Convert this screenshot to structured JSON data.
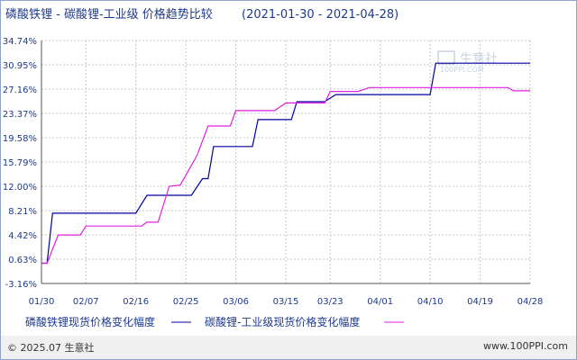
{
  "chart_data": {
    "type": "line",
    "title": "磷酸铁锂 - 碳酸锂-工业级 价格趋势比较",
    "date_range": "(2021-01-30 - 2021-04-28)",
    "x_ticks": [
      "01/30",
      "02/07",
      "02/16",
      "02/25",
      "03/06",
      "03/15",
      "03/23",
      "04/01",
      "04/10",
      "04/19",
      "04/28"
    ],
    "y_ticks": [
      "34.74%",
      "30.95%",
      "27.16%",
      "23.37%",
      "19.58%",
      "15.79%",
      "12.00%",
      "8.21%",
      "4.42%",
      "0.63%",
      "-3.16%"
    ],
    "ylim": [
      -3.16,
      34.74
    ],
    "x_range": [
      "01/30",
      "04/28"
    ],
    "grid": true,
    "legend_position": "bottom-left",
    "series": [
      {
        "name": "磷酸铁锂现货价格变化幅度",
        "color": "#0000a0",
        "points": [
          [
            "01/30",
            0.0
          ],
          [
            "01/31",
            0.0
          ],
          [
            "02/01",
            7.8
          ],
          [
            "02/16",
            7.8
          ],
          [
            "02/18",
            10.6
          ],
          [
            "02/26",
            10.6
          ],
          [
            "02/28",
            13.2
          ],
          [
            "02/29",
            13.2
          ],
          [
            "03/02",
            18.2
          ],
          [
            "03/09",
            18.2
          ],
          [
            "03/10",
            22.4
          ],
          [
            "03/16",
            22.4
          ],
          [
            "03/17",
            25.2
          ],
          [
            "03/22",
            25.2
          ],
          [
            "03/24",
            26.3
          ],
          [
            "04/10",
            26.3
          ],
          [
            "04/11",
            31.2
          ],
          [
            "04/28",
            31.2
          ]
        ]
      },
      {
        "name": "碳酸锂-工业级现货价格变化幅度",
        "color": "#e020e0",
        "points": [
          [
            "01/30",
            0.0
          ],
          [
            "01/31",
            0.0
          ],
          [
            "02/02",
            4.4
          ],
          [
            "02/06",
            4.4
          ],
          [
            "02/07",
            5.8
          ],
          [
            "02/17",
            5.8
          ],
          [
            "02/18",
            6.4
          ],
          [
            "02/20",
            6.4
          ],
          [
            "02/22",
            12.0
          ],
          [
            "02/24",
            12.2
          ],
          [
            "02/27",
            16.8
          ],
          [
            "03/01",
            21.4
          ],
          [
            "03/05",
            21.4
          ],
          [
            "03/06",
            23.8
          ],
          [
            "03/13",
            23.8
          ],
          [
            "03/15",
            25.0
          ],
          [
            "03/22",
            25.0
          ],
          [
            "03/23",
            26.8
          ],
          [
            "03/28",
            26.8
          ],
          [
            "03/30",
            27.4
          ],
          [
            "04/24",
            27.4
          ],
          [
            "04/25",
            26.9
          ],
          [
            "04/28",
            26.9
          ]
        ]
      }
    ]
  },
  "watermark": {
    "brand": "生意社",
    "url": "100PPI.COM"
  },
  "footer": {
    "left": "© 2025.07 生意社",
    "right": "www.100PPI.com"
  }
}
